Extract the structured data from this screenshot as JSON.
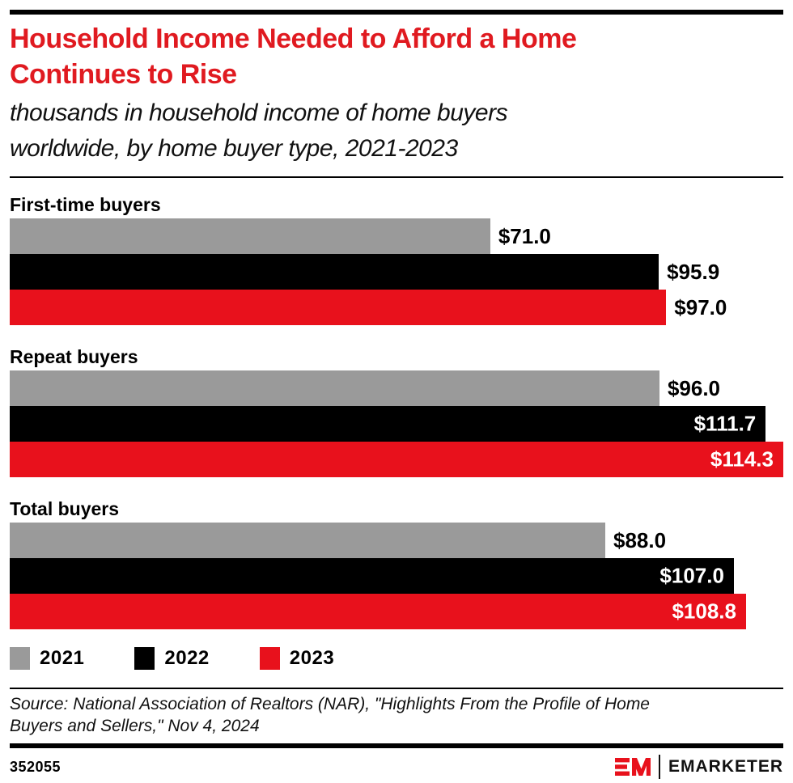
{
  "colors": {
    "title_red": "#e01a20",
    "bar_gray_2021": "#9a9a9a",
    "bar_black_2022": "#000000",
    "bar_red_2023": "#e8111c",
    "text": "#000000",
    "inside_label": "#ffffff"
  },
  "header": {
    "title_lines": [
      "Household Income Needed to Afford a Home",
      "Continues to Rise"
    ],
    "subtitle_lines": [
      "thousands in household income of home buyers",
      "worldwide, by home buyer type, 2021-2023"
    ]
  },
  "chart_data": {
    "type": "bar",
    "orientation": "horizontal",
    "title": "Household Income Needed to Afford a Home Continues to Rise",
    "subtitle": "thousands in household income of home buyers worldwide, by home buyer type, 2021-2023",
    "value_unit": "thousands of US dollars",
    "x_max": 114.3,
    "grid": false,
    "legend_position": "bottom",
    "categories": [
      "First-time buyers",
      "Repeat buyers",
      "Total buyers"
    ],
    "series": [
      {
        "name": "2021",
        "color": "#9a9a9a",
        "values": [
          71.0,
          96.0,
          88.0
        ],
        "labels": [
          "$71.0",
          "$96.0",
          "$88.0"
        ],
        "label_inside": [
          false,
          false,
          false
        ]
      },
      {
        "name": "2022",
        "color": "#000000",
        "values": [
          95.9,
          111.7,
          107.0
        ],
        "labels": [
          "$95.9",
          "$111.7",
          "$107.0"
        ],
        "label_inside": [
          false,
          true,
          true
        ]
      },
      {
        "name": "2023",
        "color": "#e8111c",
        "values": [
          97.0,
          114.3,
          108.8
        ],
        "labels": [
          "$97.0",
          "$114.3",
          "$108.8"
        ],
        "label_inside": [
          false,
          true,
          true
        ]
      }
    ],
    "legend": [
      {
        "label": "2021",
        "color": "#9a9a9a"
      },
      {
        "label": "2022",
        "color": "#000000"
      },
      {
        "label": "2023",
        "color": "#e8111c"
      }
    ]
  },
  "source": {
    "lines": [
      "Source: National Association of Realtors (NAR), \"Highlights From the Profile of Home",
      "Buyers and Sellers,\" Nov 4, 2024"
    ]
  },
  "footer": {
    "chart_id": "352055",
    "brand": "EMARKETER"
  }
}
